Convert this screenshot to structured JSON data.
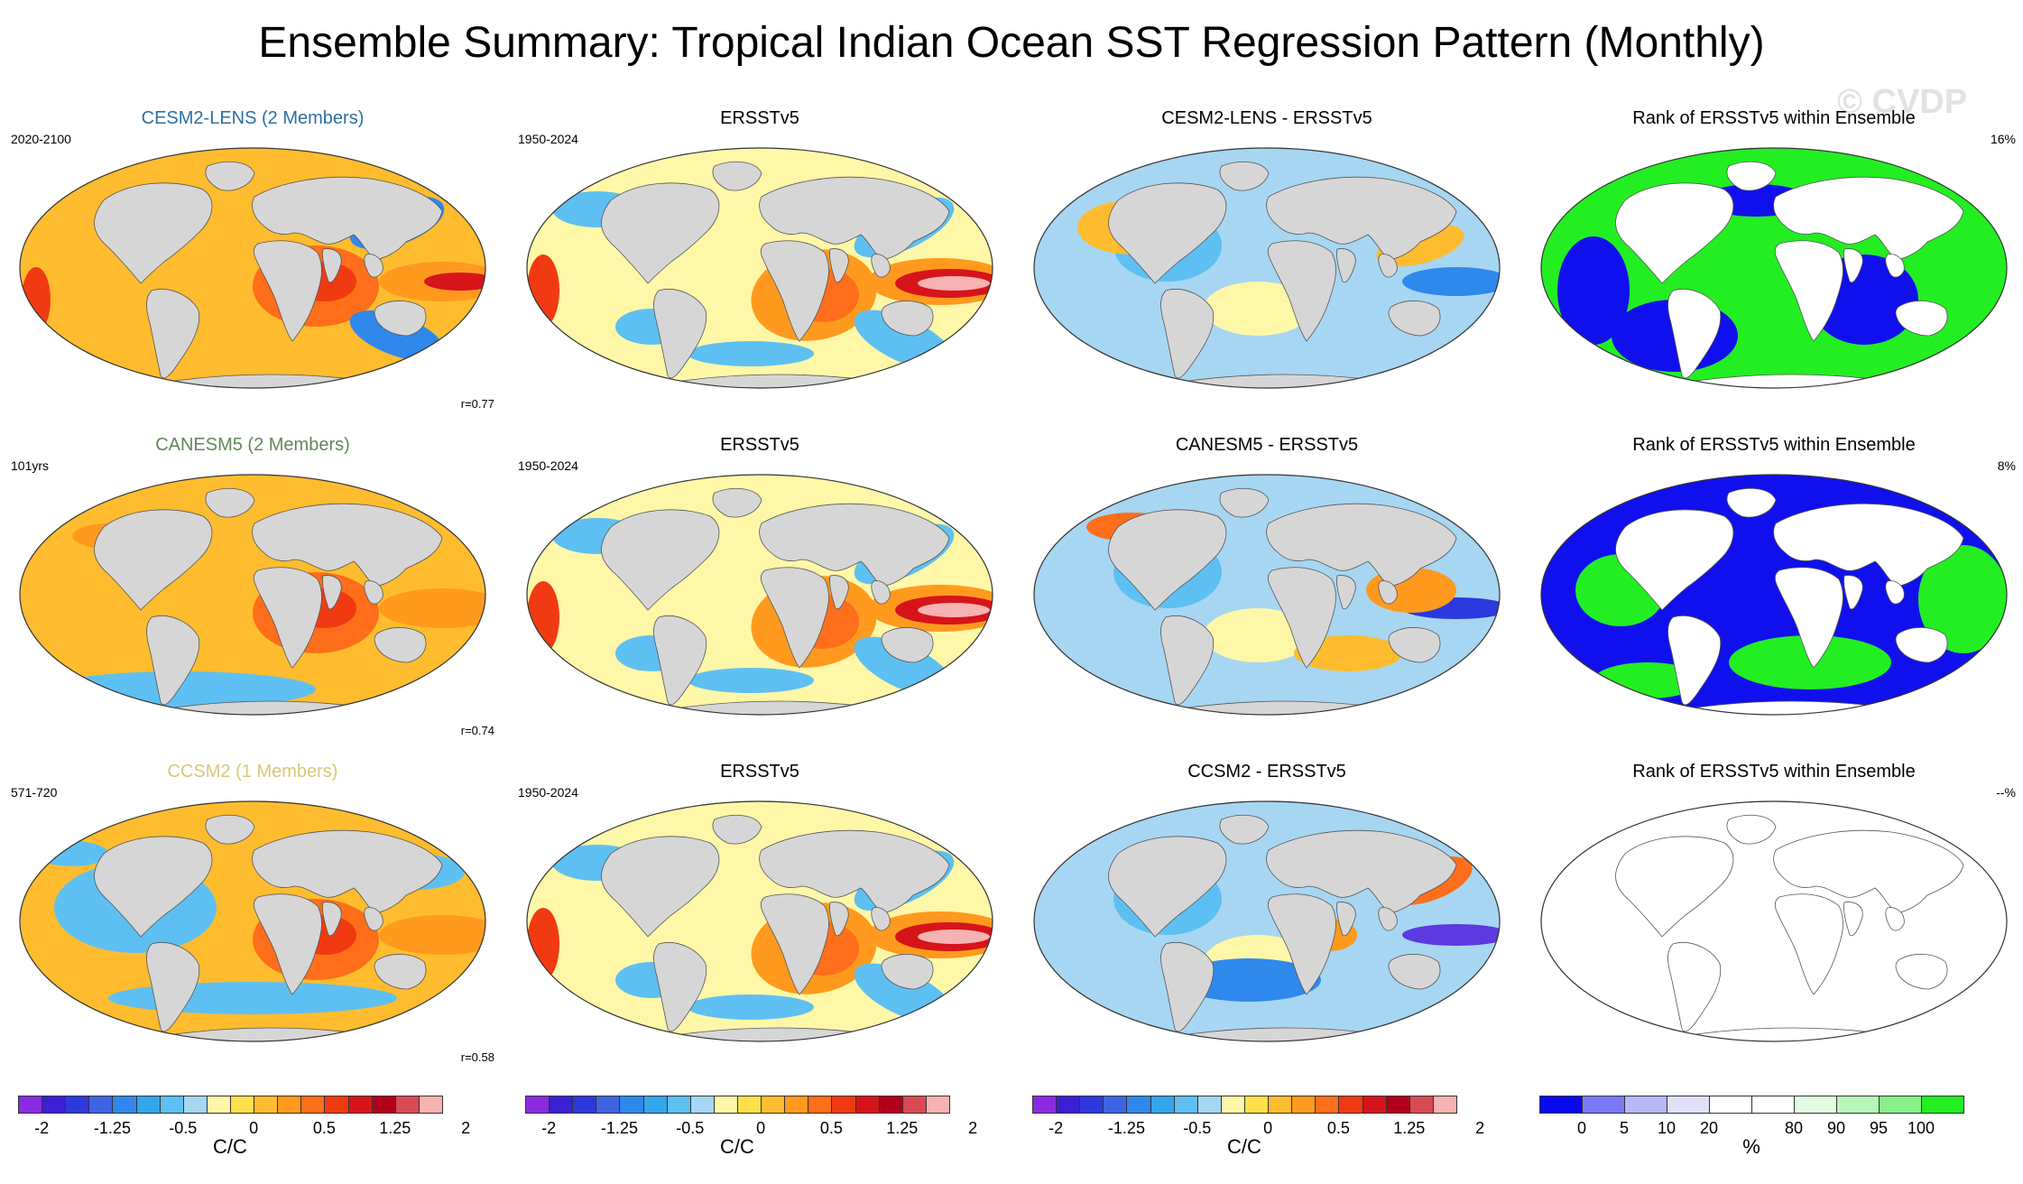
{
  "title": "Ensemble Summary: Tropical Indian Ocean SST Regression Pattern (Monthly)",
  "watermark": "© CVDP",
  "colors": {
    "land": "#d6d6d6",
    "cesm2_title": "#2e6fa0",
    "canesm5_title": "#63875a",
    "ccsm2_title": "#d8c878",
    "rank_low": "#1010ee",
    "rank_high": "#22ee22"
  },
  "rows": [
    {
      "model": {
        "title": "CESM2-LENS (2 Members)",
        "left": "2020-2100",
        "r": "r=0.77",
        "scheme": "warm"
      },
      "obs": {
        "title": "ERSSTv5",
        "left": "1950-2024",
        "scheme": "obs"
      },
      "diff": {
        "title": "CESM2-LENS - ERSSTv5",
        "scheme": "diff1"
      },
      "rank": {
        "title": "Rank of ERSSTv5 within Ensemble",
        "right": "16%",
        "scheme": "rank1"
      }
    },
    {
      "model": {
        "title": "CANESM5 (2 Members)",
        "left": "101yrs",
        "r": "r=0.74",
        "scheme": "warm2"
      },
      "obs": {
        "title": "ERSSTv5",
        "left": "1950-2024",
        "scheme": "obs"
      },
      "diff": {
        "title": "CANESM5 - ERSSTv5",
        "scheme": "diff2"
      },
      "rank": {
        "title": "Rank of ERSSTv5 within Ensemble",
        "right": "8%",
        "scheme": "rank2"
      }
    },
    {
      "model": {
        "title": "CCSM2 (1 Members)",
        "left": "571-720",
        "r": "r=0.58",
        "scheme": "warm3"
      },
      "obs": {
        "title": "ERSSTv5",
        "left": "1950-2024",
        "scheme": "obs"
      },
      "diff": {
        "title": "CCSM2 - ERSSTv5",
        "scheme": "diff3"
      },
      "rank": {
        "title": "Rank of ERSSTv5 within Ensemble",
        "right": "--%",
        "scheme": "empty"
      }
    }
  ],
  "colorbar_sst": {
    "colors": [
      "#8a2be2",
      "#3b1fd6",
      "#2c39de",
      "#3e64e4",
      "#2f88ec",
      "#33a6ee",
      "#5ec0f2",
      "#a6d6f2",
      "#fff7a8",
      "#ffe04a",
      "#ffbc2e",
      "#ff9a1e",
      "#ff6e1a",
      "#f23a12",
      "#d7141a",
      "#b3001a",
      "#d94a52",
      "#f7b2b2"
    ],
    "ticks": [
      "-2",
      "-1.25",
      "-0.5",
      "0",
      "0.5",
      "1.25",
      "2"
    ],
    "unit": "C/C"
  },
  "colorbar_rank": {
    "colors": [
      "#0a0af0",
      "#7a7af6",
      "#b8b8f8",
      "#e0e0fa",
      "#ffffff",
      "#ffffff",
      "#e2fbe2",
      "#b8f6b8",
      "#88f088",
      "#22ee22"
    ],
    "ticks": [
      "0",
      "5",
      "10",
      "20",
      "80",
      "90",
      "95",
      "100"
    ],
    "unit": "%"
  }
}
